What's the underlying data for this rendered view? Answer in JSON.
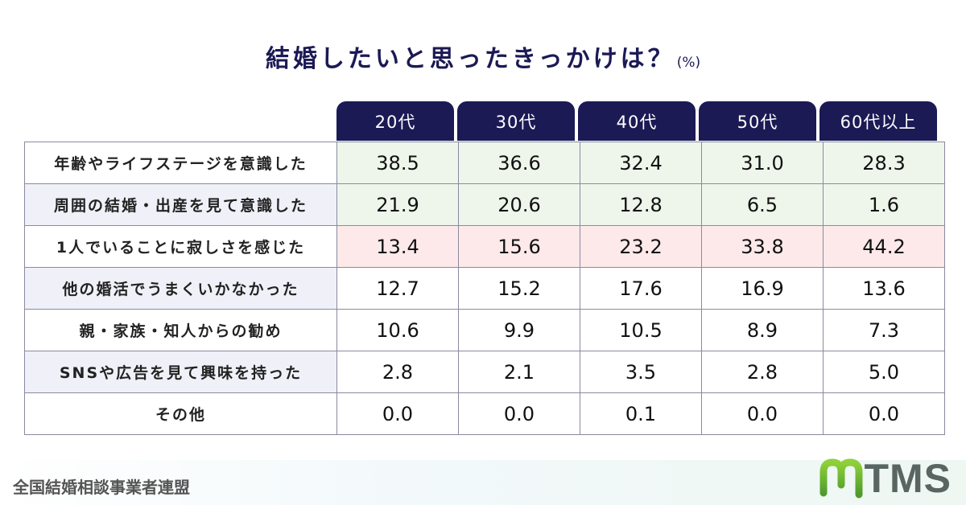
{
  "title": "結婚したいと思ったきっかけは？",
  "unit": "(%)",
  "chart_data": {
    "type": "table",
    "title": "結婚したいと思ったきっかけは？",
    "unit": "(%)",
    "columns": [
      "20代",
      "30代",
      "40代",
      "50代",
      "60代以上"
    ],
    "rows": [
      {
        "label": "年齢やライフステージを意識した",
        "values": [
          "38.5",
          "36.6",
          "32.4",
          "31.0",
          "28.3"
        ],
        "highlight": "#eef6ec"
      },
      {
        "label": "周囲の結婚・出産を見て意識した",
        "values": [
          "21.9",
          "20.6",
          "12.8",
          "6.5",
          "1.6"
        ],
        "highlight": "#eef6ec"
      },
      {
        "label": "1人でいることに寂しさを感じた",
        "values": [
          "13.4",
          "15.6",
          "23.2",
          "33.8",
          "44.2"
        ],
        "highlight": "#fde9e9"
      },
      {
        "label": "他の婚活でうまくいかなかった",
        "values": [
          "12.7",
          "15.2",
          "17.6",
          "16.9",
          "13.6"
        ]
      },
      {
        "label": "親・家族・知人からの勧め",
        "values": [
          "10.6",
          "9.9",
          "10.5",
          "8.9",
          "7.3"
        ]
      },
      {
        "label": "SNSや広告を見て興味を持った",
        "values": [
          "2.8",
          "2.1",
          "3.5",
          "2.8",
          "5.0"
        ]
      },
      {
        "label": "その他",
        "values": [
          "0.0",
          "0.0",
          "0.1",
          "0.0",
          "0.0"
        ]
      }
    ]
  },
  "footer": {
    "organization": "全国結婚相談事業者連盟",
    "logo_text": "TMS"
  },
  "colors": {
    "header": "#1b1a55",
    "green_row": "#eef6ec",
    "pink_row": "#fde9e9",
    "logo_green": "#7cc233"
  }
}
